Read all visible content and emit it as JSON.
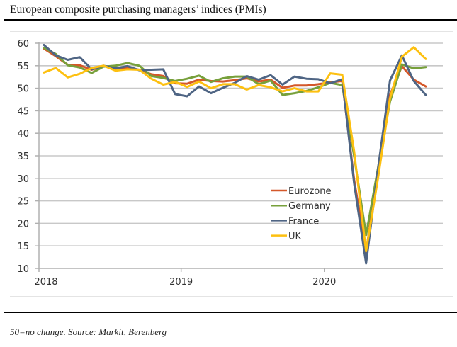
{
  "header": {
    "title": "European composite purchasing managers’ indices (PMIs)"
  },
  "footer": {
    "source": "50=no change. Source: Markit, Berenberg"
  },
  "chart_data": {
    "type": "line",
    "title": "European composite purchasing managers’ indices (PMIs)",
    "xlabel": "",
    "ylabel": "",
    "ylim": [
      10,
      60
    ],
    "yticks": [
      10,
      15,
      20,
      25,
      30,
      35,
      40,
      45,
      50,
      55,
      60
    ],
    "xtick_labels": [
      "2018",
      "2019",
      "2020"
    ],
    "xtick_months": [
      0,
      12,
      24
    ],
    "grid": "horizontal",
    "legend_position": "bottom-center",
    "x": [
      "Jan-18",
      "Feb-18",
      "Mar-18",
      "Apr-18",
      "May-18",
      "Jun-18",
      "Jul-18",
      "Aug-18",
      "Sep-18",
      "Oct-18",
      "Nov-18",
      "Dec-18",
      "Jan-19",
      "Feb-19",
      "Mar-19",
      "Apr-19",
      "May-19",
      "Jun-19",
      "Jul-19",
      "Aug-19",
      "Sep-19",
      "Oct-19",
      "Nov-19",
      "Dec-19",
      "Jan-20",
      "Feb-20",
      "Mar-20",
      "Apr-20",
      "May-20",
      "Jun-20",
      "Jul-20",
      "Aug-20",
      "Sep-20"
    ],
    "series": [
      {
        "name": "Eurozone",
        "color": "#d4582a",
        "values": [
          58.8,
          57.1,
          55.2,
          55.1,
          54.1,
          54.9,
          54.3,
          54.5,
          54.1,
          53.1,
          52.7,
          51.1,
          51.0,
          51.9,
          51.6,
          51.5,
          51.8,
          52.2,
          51.5,
          51.9,
          50.1,
          50.6,
          50.6,
          50.9,
          51.3,
          51.6,
          29.7,
          13.6,
          31.9,
          48.5,
          54.9,
          51.9,
          50.4
        ]
      },
      {
        "name": "Germany",
        "color": "#77a03b",
        "values": [
          59.0,
          57.6,
          55.1,
          54.6,
          53.4,
          54.8,
          55.0,
          55.6,
          55.0,
          52.7,
          52.3,
          51.6,
          52.1,
          52.8,
          51.4,
          52.2,
          52.6,
          52.6,
          50.9,
          51.7,
          48.5,
          48.9,
          49.4,
          50.2,
          51.2,
          50.7,
          35.0,
          17.4,
          32.3,
          47.0,
          55.3,
          54.4,
          54.7
        ]
      },
      {
        "name": "France",
        "color": "#4f6584",
        "values": [
          59.6,
          57.3,
          56.3,
          56.9,
          54.2,
          55.0,
          54.4,
          54.9,
          54.0,
          54.1,
          54.2,
          48.7,
          48.2,
          50.4,
          48.9,
          50.1,
          51.2,
          52.7,
          51.9,
          52.9,
          50.8,
          52.6,
          52.1,
          52.0,
          51.1,
          52.0,
          28.9,
          11.1,
          32.1,
          51.7,
          57.3,
          51.6,
          48.5
        ]
      },
      {
        "name": "UK",
        "color": "#fdc010",
        "values": [
          53.5,
          54.5,
          52.4,
          53.2,
          54.5,
          55.0,
          53.9,
          54.2,
          54.1,
          52.1,
          50.8,
          51.4,
          50.3,
          51.5,
          50.0,
          50.9,
          50.9,
          49.7,
          50.7,
          50.2,
          49.3,
          50.0,
          49.3,
          49.3,
          53.3,
          53.0,
          36.0,
          13.8,
          30.0,
          47.7,
          57.0,
          59.1,
          56.5
        ]
      }
    ]
  }
}
